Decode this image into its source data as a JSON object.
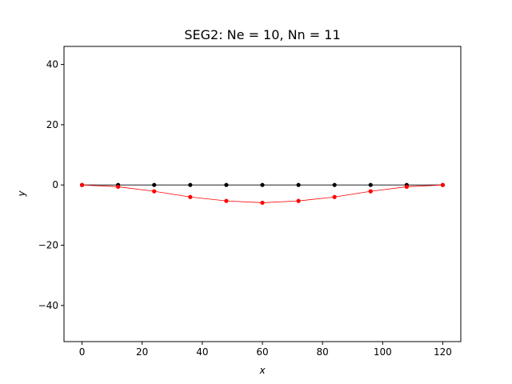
{
  "chart_data": {
    "type": "line",
    "title": "SEG2: Ne = 10, Nn = 11",
    "xlabel": "x",
    "ylabel": "y",
    "xlim": [
      -6,
      126
    ],
    "ylim": [
      -52,
      46
    ],
    "xticks": [
      0,
      20,
      40,
      60,
      80,
      100,
      120
    ],
    "yticks": [
      -40,
      -20,
      0,
      20,
      40
    ],
    "tick_labels_x": [
      "0",
      "20",
      "40",
      "60",
      "80",
      "100",
      "120"
    ],
    "tick_labels_y": [
      "−40",
      "−20",
      "0",
      "20",
      "40"
    ],
    "grid": false,
    "series": [
      {
        "color": "#000000",
        "x": [
          0,
          12,
          24,
          36,
          48,
          60,
          72,
          84,
          96,
          108,
          120
        ],
        "y": [
          0,
          0,
          0,
          0,
          0,
          0,
          0,
          0,
          0,
          0,
          0
        ]
      },
      {
        "color": "#ff0000",
        "x": [
          0,
          12,
          24,
          36,
          48,
          60,
          72,
          84,
          96,
          108,
          120
        ],
        "y": [
          0,
          -0.6,
          -2.1,
          -4.0,
          -5.3,
          -5.9,
          -5.3,
          -4.0,
          -2.1,
          -0.6,
          0
        ]
      }
    ]
  }
}
